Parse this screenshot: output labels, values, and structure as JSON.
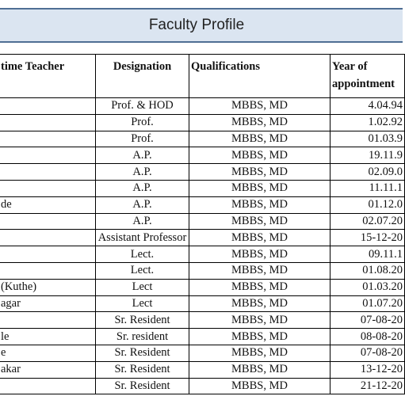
{
  "title": "Faculty Profile",
  "headers": {
    "name": "time Teacher",
    "designation": "Designation",
    "qualifications": "Qualifications",
    "year_line1": "Year of",
    "year_line2": "appointment"
  },
  "rows": [
    {
      "name": "",
      "designation": "Prof. & HOD",
      "qualifications": "MBBS, MD",
      "year": "4.04.94"
    },
    {
      "name": "",
      "designation": "Prof.",
      "qualifications": "MBBS, MD",
      "year": "1.02.92"
    },
    {
      "name": "",
      "designation": "Prof.",
      "qualifications": "MBBS, MD",
      "year": "01.03.9"
    },
    {
      "name": "",
      "designation": "A.P.",
      "qualifications": "MBBS, MD",
      "year": "19.11.9"
    },
    {
      "name": "",
      "designation": "A.P.",
      "qualifications": "MBBS, MD",
      "year": "02.09.0"
    },
    {
      "name": "",
      "designation": "A.P.",
      "qualifications": "MBBS, MD",
      "year": "11.11.1"
    },
    {
      "name": "de",
      "designation": "A.P.",
      "qualifications": "MBBS, MD",
      "year": "01.12.0"
    },
    {
      "name": "",
      "designation": "A.P.",
      "qualifications": "MBBS, MD",
      "year": "02.07.20"
    },
    {
      "name": "",
      "designation": "Assistant Professor",
      "qualifications": "MBBS, MD",
      "year": "15-12-20"
    },
    {
      "name": "",
      "designation": "Lect.",
      "qualifications": "MBBS, MD",
      "year": "09.11.1"
    },
    {
      "name": "",
      "designation": "Lect.",
      "qualifications": "MBBS, MD",
      "year": "01.08.20"
    },
    {
      "name": "(Kuthe)",
      "designation": "Lect",
      "qualifications": "MBBS, MD",
      "year": "01.03.20"
    },
    {
      "name": "agar",
      "designation": "Lect",
      "qualifications": "MBBS, MD",
      "year": "01.07.20"
    },
    {
      "name": "",
      "designation": "Sr. Resident",
      "qualifications": "MBBS, MD",
      "year": "07-08-20"
    },
    {
      "name": "le",
      "designation": "Sr. resident",
      "qualifications": "MBBS, MD",
      "year": "08-08-20"
    },
    {
      "name": "e",
      "designation": "Sr. Resident",
      "qualifications": "MBBS, MD",
      "year": "07-08-20"
    },
    {
      "name": "akar",
      "designation": "Sr. Resident",
      "qualifications": "MBBS, MD",
      "year": "13-12-20"
    },
    {
      "name": "",
      "designation": "Sr. Resident",
      "qualifications": "MBBS, MD",
      "year": "21-12-20"
    }
  ]
}
